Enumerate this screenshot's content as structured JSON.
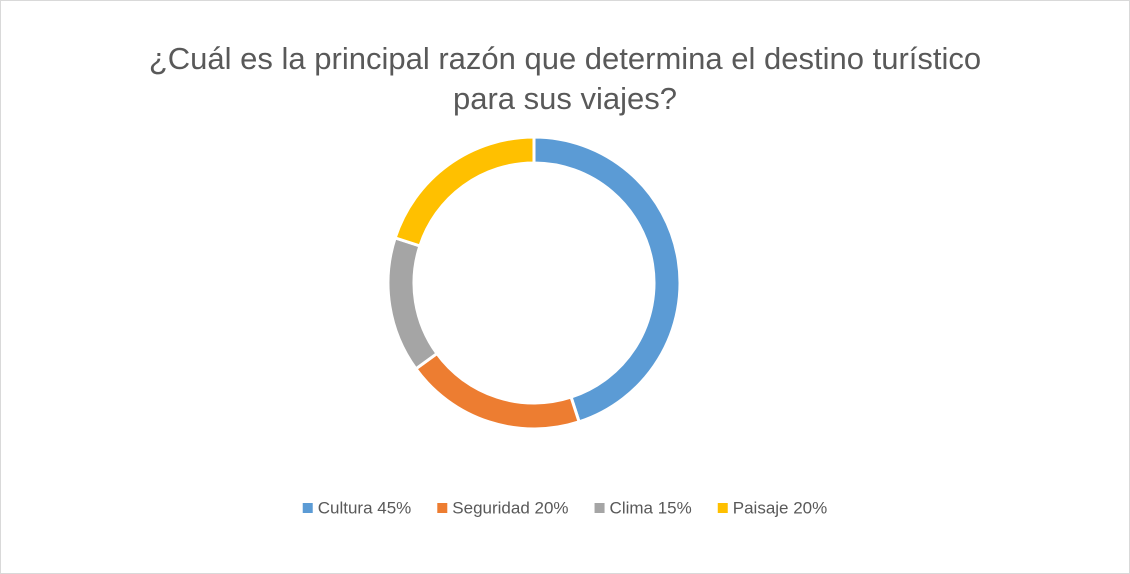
{
  "chart_data": {
    "type": "donut",
    "title": "¿Cuál es la principal razón que determina el destino turístico para sus viajes?",
    "categories": [
      "Cultura 45%",
      "Seguridad 20%",
      "Clima 15%",
      "Paisaje 20%"
    ],
    "values": [
      45,
      20,
      15,
      20
    ],
    "colors": [
      "#5b9bd5",
      "#ed7d31",
      "#a5a5a5",
      "#ffc000"
    ],
    "legend": "bottom"
  }
}
